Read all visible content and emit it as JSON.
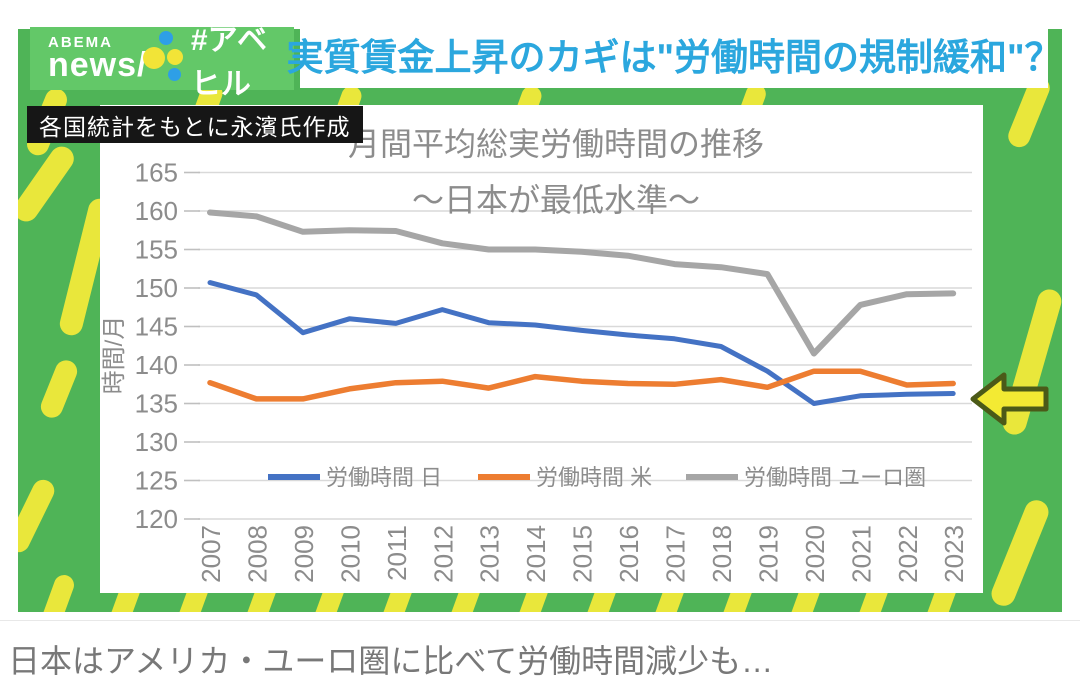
{
  "header": {
    "logo_line1": "ABEMA",
    "logo_line2": "news/",
    "hashtag": "#アベヒル",
    "headline": "実質賃金上昇のカギは\"労働時間の規制緩和\"？"
  },
  "source_label": "各国統計をもとに永濱氏作成",
  "chart_data": {
    "type": "line",
    "title": "月間平均総実労働時間の推移",
    "subtitle": "～日本が最低水準～",
    "ylabel": "時間/月",
    "ylim": [
      120,
      165
    ],
    "yticks": [
      120,
      125,
      130,
      135,
      140,
      145,
      150,
      155,
      160,
      165
    ],
    "grid": true,
    "legend_position": "bottom-inside",
    "categories": [
      "2007",
      "2008",
      "2009",
      "2010",
      "2011",
      "2012",
      "2013",
      "2014",
      "2015",
      "2016",
      "2017",
      "2018",
      "2019",
      "2020",
      "2021",
      "2022",
      "2023"
    ],
    "series": [
      {
        "name": "労働時間 日",
        "color": "#4472c4",
        "values": [
          150.7,
          149.1,
          144.2,
          146.0,
          145.4,
          147.2,
          145.5,
          145.2,
          144.5,
          143.9,
          143.4,
          142.4,
          139.2,
          135.0,
          136.0,
          136.2,
          136.3
        ]
      },
      {
        "name": "労働時間 米",
        "color": "#ed7d31",
        "values": [
          137.7,
          135.6,
          135.6,
          136.9,
          137.7,
          137.9,
          137.0,
          138.5,
          137.9,
          137.6,
          137.5,
          138.1,
          137.1,
          139.2,
          139.2,
          137.4,
          137.6
        ]
      },
      {
        "name": "労働時間 ユーロ圏",
        "color": "#a6a6a6",
        "values": [
          159.8,
          159.3,
          157.3,
          157.5,
          157.4,
          155.8,
          155.0,
          155.0,
          154.7,
          154.2,
          153.1,
          152.7,
          151.8,
          141.5,
          147.8,
          149.2,
          149.3
        ]
      }
    ]
  },
  "annotation": {
    "arrow": "left-arrow",
    "arrow_color": "#f3ea33",
    "arrow_outline": "#4b5a18"
  },
  "caption": "日本はアメリカ・ユーロ圏に比べて労働時間減少も…",
  "colors": {
    "frame_green": "#4fb457",
    "logo_green": "#63c868",
    "stripe_yellow": "#e9e73b",
    "headline_blue": "#2ba7de",
    "grid_gray": "#d9d9d9",
    "axis_text_gray": "#8c8c8c"
  }
}
